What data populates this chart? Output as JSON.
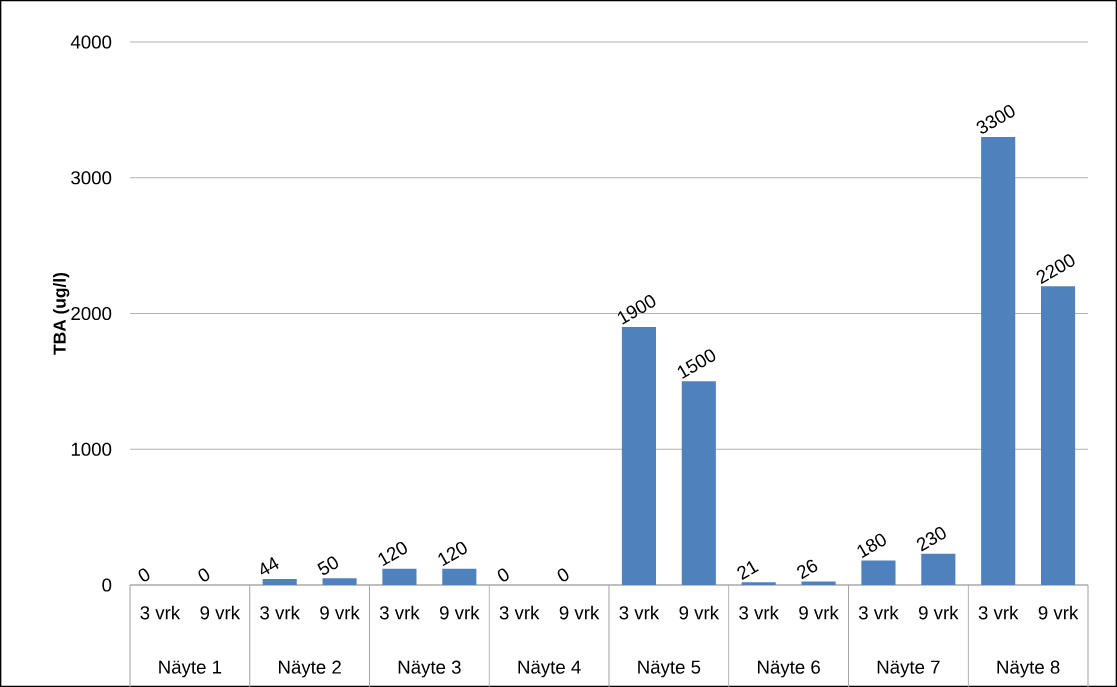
{
  "chart_data": {
    "type": "bar",
    "ylabel": "TBA (ug/l)",
    "categories": [
      "3 vrk",
      "9 vrk",
      "3 vrk",
      "9 vrk",
      "3 vrk",
      "9 vrk",
      "3 vrk",
      "9 vrk",
      "3 vrk",
      "9 vrk",
      "3 vrk",
      "9 vrk",
      "3 vrk",
      "9 vrk",
      "3 vrk",
      "9 vrk"
    ],
    "values": [
      0,
      0,
      44,
      50,
      120,
      120,
      0,
      0,
      1900,
      1500,
      21,
      26,
      180,
      230,
      3300,
      2200
    ],
    "color": "#4f81bd",
    "data_labels": true,
    "grid": "y",
    "ylim": [
      0,
      4000
    ],
    "yticks": [
      0,
      1000,
      2000,
      3000,
      4000
    ],
    "annotations": [
      "Näyte 1",
      "Näyte 2",
      "Näyte 3",
      "Näyte 4",
      "Näyte 5",
      "Näyte 6",
      "Näyte 7",
      "Näyte 8"
    ]
  }
}
